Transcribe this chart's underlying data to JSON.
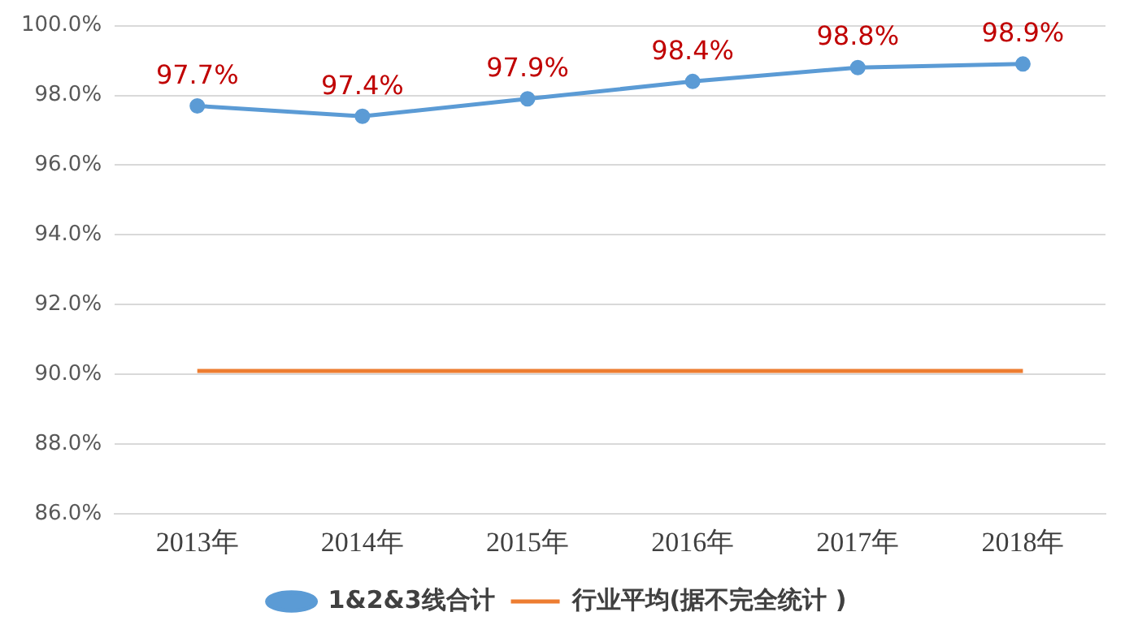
{
  "chart_data": {
    "type": "line",
    "categories": [
      "2013年",
      "2014年",
      "2015年",
      "2016年",
      "2017年",
      "2018年"
    ],
    "series": [
      {
        "name": "1&2&3线合计",
        "color": "#5b9bd5",
        "marker": "circle",
        "values": [
          97.7,
          97.4,
          97.9,
          98.4,
          98.8,
          98.9
        ],
        "value_labels": [
          "97.7%",
          "97.4%",
          "97.9%",
          "98.4%",
          "98.8%",
          "98.9%"
        ]
      },
      {
        "name": "行业平均(据不完全统计 )",
        "color": "#ed7d31",
        "marker": "none",
        "values": [
          90.1,
          90.1,
          90.1,
          90.1,
          90.1,
          90.1
        ]
      }
    ],
    "ylim": [
      86,
      100
    ],
    "yticks": [
      {
        "value": 86,
        "label": "86.0%"
      },
      {
        "value": 88,
        "label": "88.0%"
      },
      {
        "value": 90,
        "label": "90.0%"
      },
      {
        "value": 92,
        "label": "92.0%"
      },
      {
        "value": 94,
        "label": "94.0%"
      },
      {
        "value": 96,
        "label": "96.0%"
      },
      {
        "value": 98,
        "label": "98.0%"
      },
      {
        "value": 100,
        "label": "100.0%"
      }
    ],
    "grid": "y",
    "legend": "bottom",
    "line_style": "solid"
  }
}
